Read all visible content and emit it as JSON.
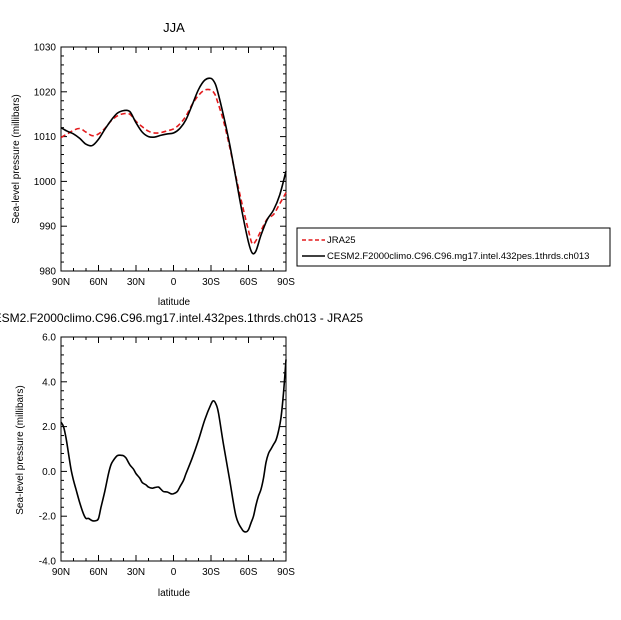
{
  "chart_data": [
    {
      "type": "line",
      "title": "JJA",
      "xlabel": "latitude",
      "ylabel": "Sea-level pressure (millibars)",
      "xlim": [
        90,
        -90
      ],
      "ylim": [
        980,
        1030
      ],
      "x_ticks": [
        90,
        60,
        30,
        0,
        -30,
        -60,
        -90
      ],
      "x_tick_labels": [
        "90N",
        "60N",
        "30N",
        "0",
        "30S",
        "60S",
        "90S"
      ],
      "y_ticks": [
        980,
        990,
        1000,
        1010,
        1020,
        1030
      ],
      "y_tick_labels": [
        "980",
        "990",
        "1000",
        "1010",
        "1020",
        "1030"
      ],
      "legend_position": "right",
      "series": [
        {
          "name": "JRA25",
          "color": "#e41a1c",
          "dash": "dashed",
          "x": [
            90,
            85,
            80,
            75,
            70,
            65,
            60,
            55,
            50,
            45,
            40,
            35,
            30,
            25,
            20,
            15,
            10,
            5,
            0,
            -5,
            -10,
            -15,
            -20,
            -25,
            -30,
            -33,
            -35,
            -40,
            -45,
            -50,
            -55,
            -60,
            -63,
            -66,
            -70,
            -75,
            -80,
            -85,
            -90
          ],
          "y": [
            1009.8,
            1010.6,
            1011.4,
            1011.8,
            1011.0,
            1010.2,
            1010.6,
            1011.8,
            1013.5,
            1014.6,
            1015.1,
            1015.0,
            1013.4,
            1012.2,
            1011.2,
            1010.8,
            1010.9,
            1011.3,
            1011.7,
            1012.8,
            1014.6,
            1017.2,
            1019.2,
            1020.4,
            1020.4,
            1019.5,
            1018.0,
            1013.5,
            1007.6,
            1001.0,
            994.8,
            989.0,
            986.1,
            986.8,
            989.0,
            991.6,
            992.6,
            995.0,
            997.5
          ]
        },
        {
          "name": "CESM2.F2000climo.C96.C96.mg17.intel.432pes.1thrds.ch013",
          "color": "#000000",
          "dash": "solid",
          "x": [
            90,
            85,
            80,
            75,
            70,
            65,
            60,
            55,
            50,
            45,
            40,
            35,
            30,
            25,
            20,
            15,
            10,
            5,
            0,
            -5,
            -10,
            -15,
            -20,
            -25,
            -30,
            -33,
            -35,
            -40,
            -45,
            -50,
            -55,
            -60,
            -63,
            -66,
            -70,
            -75,
            -80,
            -85,
            -90
          ],
          "y": [
            1012.0,
            1011.2,
            1010.6,
            1009.6,
            1008.3,
            1008.0,
            1009.4,
            1011.6,
            1013.6,
            1015.2,
            1015.8,
            1015.6,
            1013.1,
            1011.0,
            1010.0,
            1009.9,
            1010.3,
            1010.6,
            1010.8,
            1011.8,
            1013.8,
            1017.1,
            1020.5,
            1022.6,
            1023.0,
            1022.0,
            1020.4,
            1014.7,
            1008.2,
            1000.6,
            993.0,
            986.4,
            984.0,
            984.5,
            988.0,
            991.5,
            993.6,
            997.0,
            1002.3
          ]
        }
      ]
    },
    {
      "type": "line",
      "title": "CESM2.F2000climo.C96.C96.mg17.intel.432pes.1thrds.ch013 - JRA25",
      "xlabel": "latitude",
      "ylabel": "Sea-level pressure (millibars)",
      "xlim": [
        90,
        -90
      ],
      "ylim": [
        -4,
        6
      ],
      "x_ticks": [
        90,
        60,
        30,
        0,
        -30,
        -60,
        -90
      ],
      "x_tick_labels": [
        "90N",
        "60N",
        "30N",
        "0",
        "30S",
        "60S",
        "90S"
      ],
      "y_ticks": [
        -4,
        -2,
        0,
        2,
        4,
        6
      ],
      "y_tick_labels": [
        "-4.0",
        "-2.0",
        "0.0",
        "2.0",
        "4.0",
        "6.0"
      ],
      "series": [
        {
          "color": "#000000",
          "dash": "solid",
          "x": [
            90,
            88,
            86,
            84,
            82,
            80,
            78,
            75,
            72,
            70,
            68,
            65,
            62,
            60,
            58,
            55,
            52,
            50,
            48,
            45,
            42,
            40,
            38,
            35,
            32,
            30,
            27,
            25,
            22,
            20,
            17,
            15,
            12,
            10,
            8,
            5,
            2,
            0,
            -3,
            -5,
            -8,
            -10,
            -15,
            -20,
            -25,
            -30,
            -32,
            -34,
            -36,
            -40,
            -45,
            -50,
            -55,
            -58,
            -60,
            -62,
            -64,
            -66,
            -68,
            -70,
            -72,
            -74,
            -76,
            -78,
            -80,
            -82,
            -84,
            -86,
            -88,
            -90
          ],
          "y": [
            2.2,
            2.0,
            1.5,
            0.8,
            0.1,
            -0.4,
            -0.8,
            -1.4,
            -1.9,
            -2.1,
            -2.1,
            -2.2,
            -2.2,
            -2.1,
            -1.6,
            -0.9,
            -0.1,
            0.3,
            0.5,
            0.7,
            0.72,
            0.7,
            0.6,
            0.3,
            0.1,
            -0.1,
            -0.3,
            -0.5,
            -0.6,
            -0.7,
            -0.75,
            -0.72,
            -0.7,
            -0.8,
            -0.9,
            -0.92,
            -1.0,
            -1.0,
            -0.9,
            -0.7,
            -0.4,
            -0.1,
            0.6,
            1.4,
            2.3,
            3.0,
            3.15,
            3.0,
            2.6,
            1.2,
            -0.4,
            -2.0,
            -2.6,
            -2.7,
            -2.6,
            -2.3,
            -2.0,
            -1.5,
            -1.1,
            -0.8,
            -0.3,
            0.4,
            0.8,
            1.0,
            1.2,
            1.4,
            1.8,
            2.4,
            3.5,
            5.0
          ]
        }
      ]
    }
  ]
}
